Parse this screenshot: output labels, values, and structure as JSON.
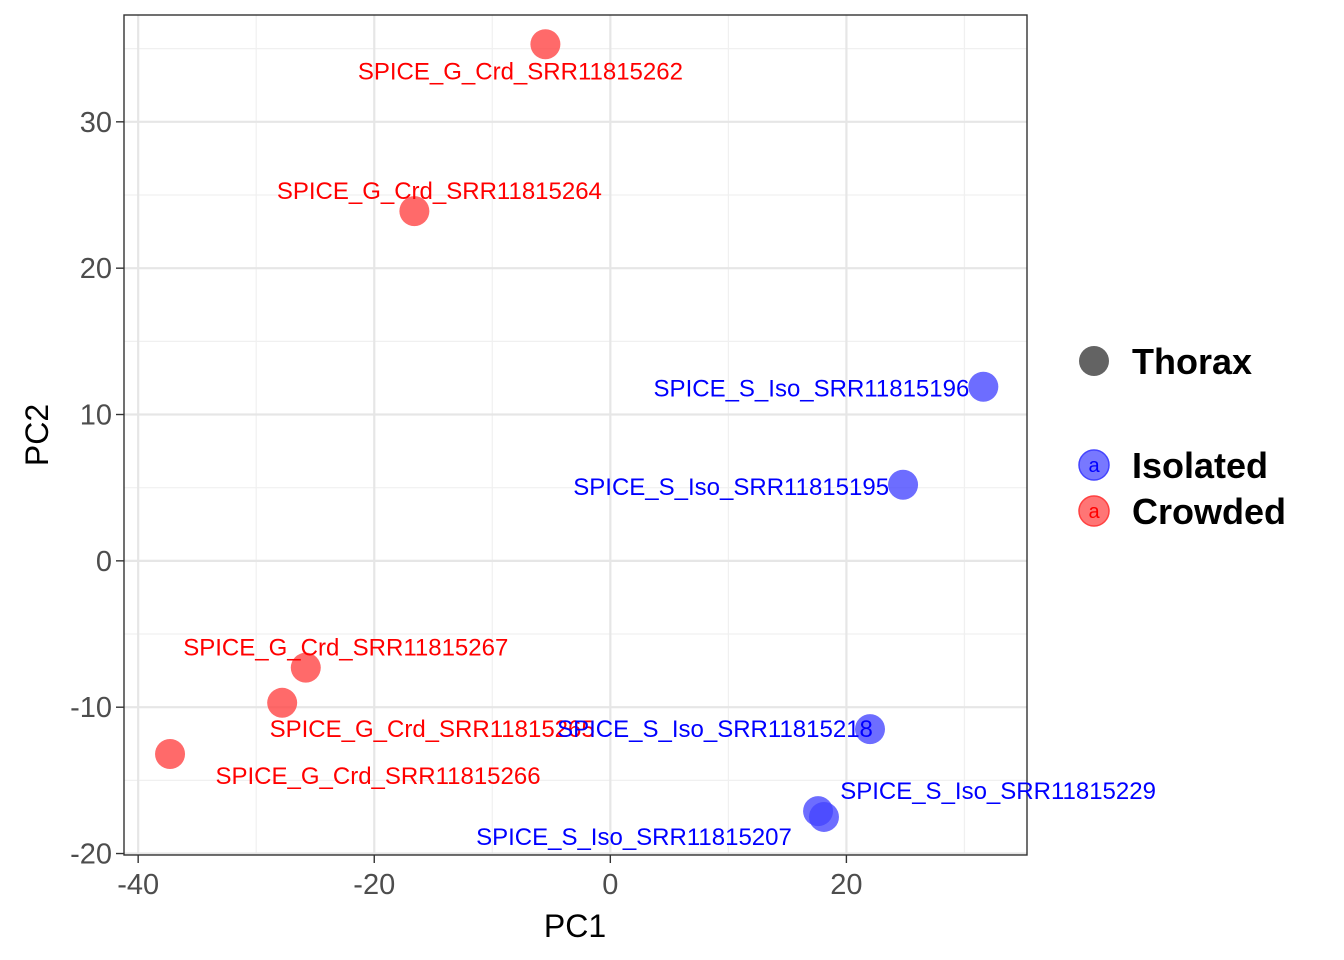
{
  "chart_data": {
    "type": "scatter",
    "title": "",
    "xlabel": "PC1",
    "ylabel": "PC2",
    "xlim": [
      -41.2,
      35.3
    ],
    "ylim": [
      -20.1,
      37.3
    ],
    "xticks": [
      -40,
      -20,
      0,
      20
    ],
    "yticks": [
      -20,
      -10,
      0,
      10,
      20,
      30
    ],
    "grid": true,
    "colors": {
      "Isolated": "#4444ff",
      "Crowded": "#ff4040",
      "Isolated_text": "#0000ff",
      "Crowded_text": "#ff0000"
    },
    "points": [
      {
        "label": "SPICE_G_Crd_SRR11815262",
        "group": "Crowded",
        "x": -5.5,
        "y": 35.3
      },
      {
        "label": "SPICE_G_Crd_SRR11815264",
        "group": "Crowded",
        "x": -16.6,
        "y": 23.9
      },
      {
        "label": "SPICE_S_Iso_SRR11815196",
        "group": "Isolated",
        "x": 31.6,
        "y": 11.9
      },
      {
        "label": "SPICE_S_Iso_SRR11815195",
        "group": "Isolated",
        "x": 24.8,
        "y": 5.2
      },
      {
        "label": "SPICE_G_Crd_SRR11815267",
        "group": "Crowded",
        "x": -25.8,
        "y": -7.3
      },
      {
        "label": "SPICE_G_Crd_SRR11815265",
        "group": "Crowded",
        "x": -27.8,
        "y": -9.7
      },
      {
        "label": "SPICE_S_Iso_SRR11815218",
        "group": "Isolated",
        "x": 22.0,
        "y": -11.5
      },
      {
        "label": "SPICE_G_Crd_SRR11815266",
        "group": "Crowded",
        "x": -37.3,
        "y": -13.2
      },
      {
        "label": "SPICE_S_Iso_SRR11815229",
        "group": "Isolated",
        "x": 17.6,
        "y": -17.1
      },
      {
        "label": "SPICE_S_Iso_SRR11815207",
        "group": "Isolated",
        "x": 18.1,
        "y": -17.5
      }
    ],
    "legend": {
      "position": "right",
      "shape_title": "Thorax",
      "key_letter": "a",
      "groups": [
        {
          "label": "Isolated",
          "group": "Isolated"
        },
        {
          "label": "Crowded",
          "group": "Crowded"
        }
      ]
    }
  }
}
